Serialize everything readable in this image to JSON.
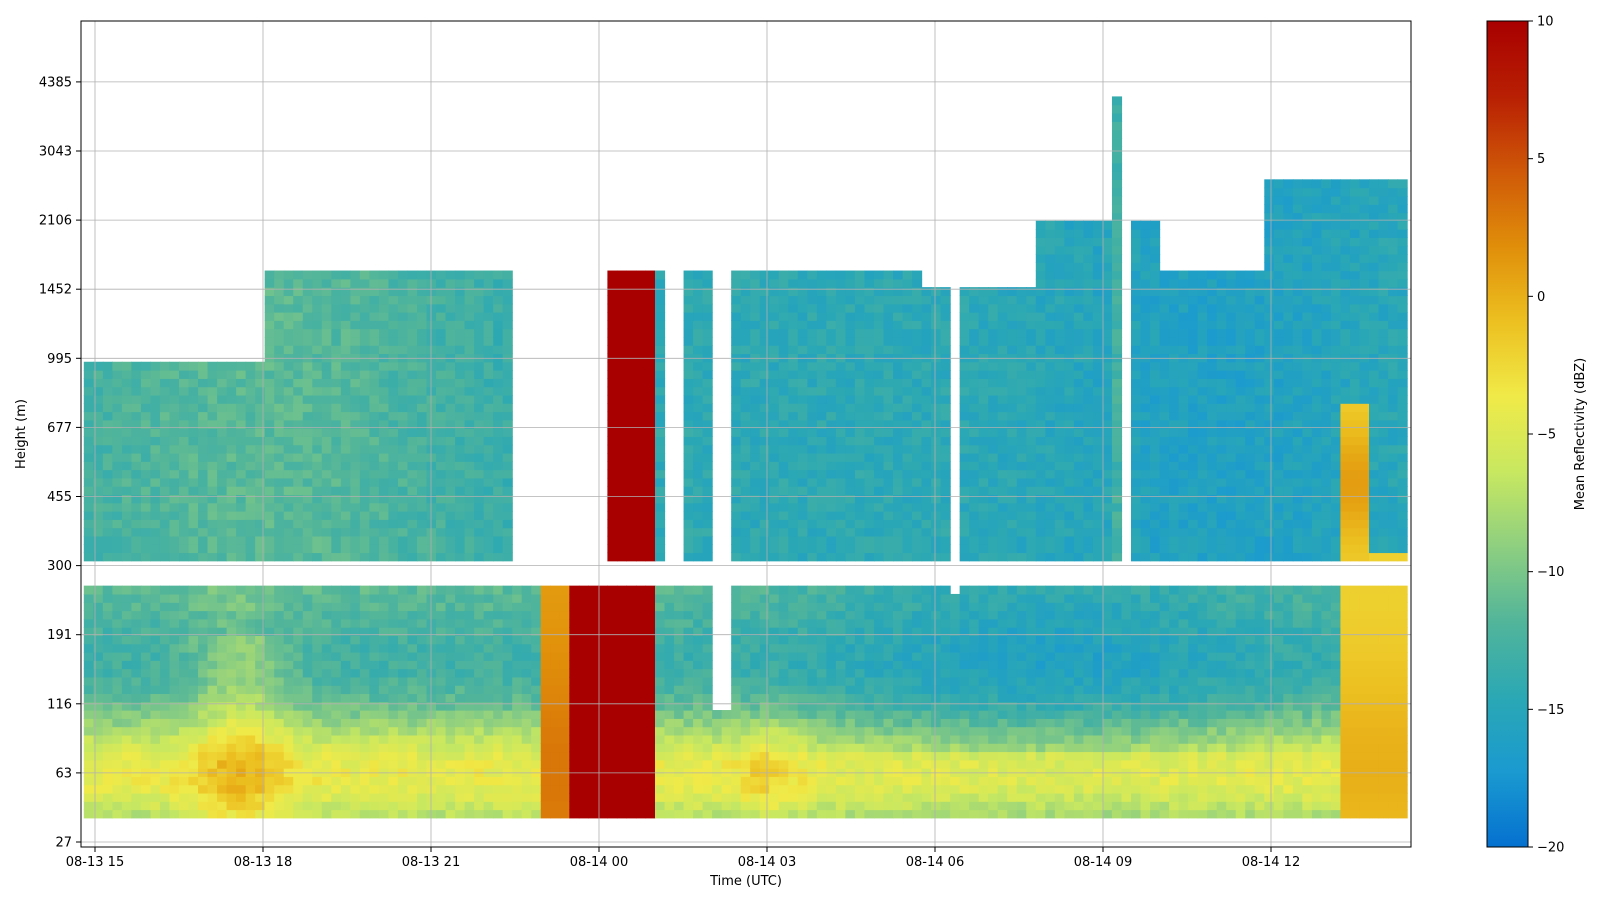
{
  "chart_data": {
    "type": "heatmap",
    "title": "",
    "xlabel": "Time (UTC)",
    "ylabel": "Height (m)",
    "x_ticks": [
      "08-13 15",
      "08-13 18",
      "08-13 21",
      "08-14 00",
      "08-14 03",
      "08-14 06",
      "08-14 09",
      "08-14 12"
    ],
    "x_tick_hours": [
      0,
      3,
      6,
      9,
      12,
      15,
      18,
      21
    ],
    "xlim_hours": [
      -0.25,
      23.5
    ],
    "y_ticks": [
      "27",
      "63",
      "116",
      "191",
      "300",
      "455",
      "677",
      "995",
      "1452",
      "2106",
      "3043",
      "4385"
    ],
    "y_scale": "categorical-range-gates",
    "grid": true,
    "colorbar": {
      "label": "Mean Reflectivity (dBZ)",
      "min": -20,
      "max": 10,
      "ticks": [
        "10",
        "5",
        "0",
        "−5",
        "−10",
        "−15",
        "−20"
      ],
      "tick_values": [
        10,
        5,
        0,
        -5,
        -10,
        -15,
        -20
      ],
      "colormap": [
        "#0571d0",
        "#1a9ad0",
        "#2ba8b4",
        "#52b59a",
        "#8ecf80",
        "#c8e860",
        "#f0ea48",
        "#ecc020",
        "#e08e0a",
        "#cf5808",
        "#b81f03",
        "#a80000"
      ]
    },
    "regions": [
      {
        "name": "low-level-echo",
        "t_start": -0.2,
        "t_end": 23.4,
        "height_range": [
          "27",
          "300"
        ],
        "dbz_range": [
          -15,
          2
        ]
      },
      {
        "name": "upper-level-echo",
        "t_start": -0.2,
        "t_end": 23.4,
        "height_range": [
          "300",
          "3043"
        ],
        "dbz_range": [
          -18,
          -7
        ]
      },
      {
        "name": "saturated-column",
        "t_start": 9.2,
        "t_end": 10.0,
        "height_range": [
          "27",
          "1800"
        ],
        "dbz_range": [
          10,
          10
        ]
      },
      {
        "name": "surface-rain",
        "t_start": 8.0,
        "t_end": 9.2,
        "height_range": [
          "27",
          "250"
        ],
        "dbz_range": [
          5,
          10
        ]
      },
      {
        "name": "late-enhancement",
        "t_start": 22.2,
        "t_end": 23.4,
        "height_range": [
          "27",
          "900"
        ],
        "dbz_range": [
          -3,
          3
        ]
      }
    ]
  }
}
